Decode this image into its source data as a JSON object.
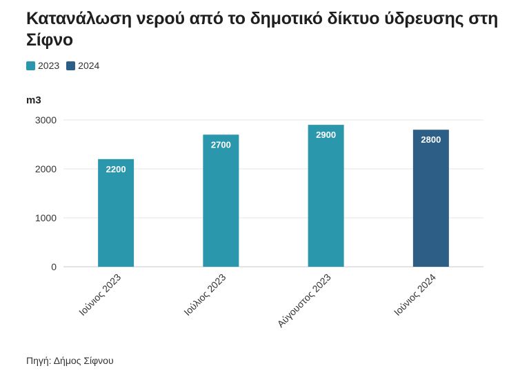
{
  "title": "Κατανάλωση νερού από το δημοτικό δίκτυο ύδρευσης στη Σίφνο",
  "legend": [
    {
      "label": "2023",
      "color": "#2b97ad"
    },
    {
      "label": "2024",
      "color": "#2d5f86"
    }
  ],
  "source": "Πηγή: Δήμος Σίφνου",
  "chart_data": {
    "type": "bar",
    "categories": [
      "Ιούνιος 2023",
      "Ιούλιος 2023",
      "Αύγουστος 2023",
      "Ιούνιος 2024"
    ],
    "series": [
      {
        "name": "2023",
        "values": [
          2200,
          2700,
          2900,
          null
        ],
        "color": "#2b97ad"
      },
      {
        "name": "2024",
        "values": [
          null,
          null,
          null,
          2800
        ],
        "color": "#2d5f86"
      }
    ],
    "ylabel": "m3",
    "ylim": [
      0,
      3000
    ],
    "yticks": [
      0,
      1000,
      2000,
      3000
    ],
    "grid": true,
    "legend_position": "top-left",
    "data_labels": [
      "2200",
      "2700",
      "2900",
      "2800"
    ]
  }
}
